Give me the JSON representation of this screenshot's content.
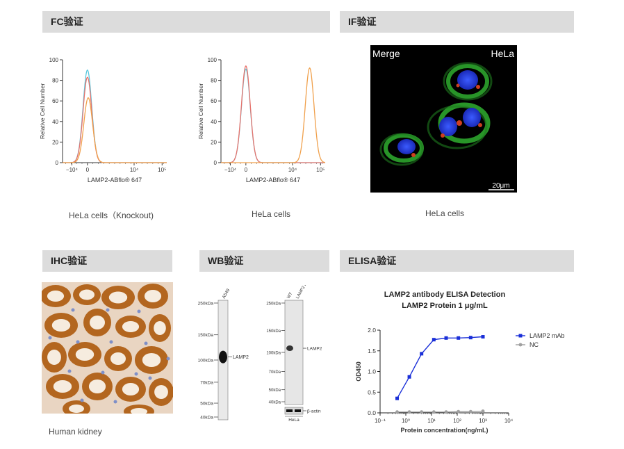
{
  "sections": {
    "fc": "FC验证",
    "if": "IF验证",
    "ihc": "IHC验证",
    "wb": "WB验证",
    "elisa": "ELISA验证"
  },
  "captions": {
    "fc_left": "HeLa cells（Knockout)",
    "fc_right": "HeLa cells",
    "if": "HeLa cells",
    "ihc": "Human kidney"
  },
  "if_image": {
    "label_left": "Merge",
    "label_right": "HeLa",
    "scale_bar": "20μm"
  },
  "chart_data": [
    {
      "type": "line",
      "chart": "flow-histogram-knockout",
      "ylabel": "Relative Cell Number",
      "xlabel": "LAMP2-ABflo® 647",
      "yticks": [
        "0",
        "20",
        "40",
        "60",
        "80",
        "100"
      ],
      "xticks": [
        "−10⁴",
        "0",
        "10⁴",
        "10⁵"
      ],
      "ylim": [
        0,
        100
      ],
      "series": [
        {
          "color": "#5bc8de",
          "peak_x": 0,
          "peak_y": 90
        },
        {
          "color": "#e8736c",
          "peak_x": 0,
          "peak_y": 83
        },
        {
          "color": "#f0a04b",
          "peak_x": 0.05,
          "peak_y": 63
        }
      ]
    },
    {
      "type": "line",
      "chart": "flow-histogram-wt",
      "ylabel": "Relative Cell Number",
      "xlabel": "LAMP2-ABflo® 647",
      "yticks": [
        "0",
        "20",
        "40",
        "60",
        "80",
        "100"
      ],
      "xticks": [
        "−10⁴",
        "0",
        "10⁴",
        "10⁵"
      ],
      "ylim": [
        0,
        100
      ],
      "series": [
        {
          "color": "#5bc8de",
          "peak_x": 0,
          "peak_y": 91
        },
        {
          "color": "#e8736c",
          "peak_x": 0,
          "peak_y": 94
        },
        {
          "color": "#f0a04b",
          "peak_x": 4.1,
          "peak_y": 92
        }
      ]
    },
    {
      "type": "table",
      "chart": "western-blot-1",
      "lanes": [
        "A549"
      ],
      "markers": [
        {
          "label": "250kDa",
          "kda": 250
        },
        {
          "label": "150kDa",
          "kda": 150
        },
        {
          "label": "100kDa",
          "kda": 100
        },
        {
          "label": "70kDa",
          "kda": 70
        },
        {
          "label": "50kDa",
          "kda": 50
        },
        {
          "label": "40kDa",
          "kda": 40
        }
      ],
      "band_label": "LAMP2"
    },
    {
      "type": "table",
      "chart": "western-blot-2",
      "lanes": [
        "WT",
        "LAMP2 KO"
      ],
      "markers": [
        {
          "label": "250kDa",
          "kda": 250
        },
        {
          "label": "150kDa",
          "kda": 150
        },
        {
          "label": "100kDa",
          "kda": 100
        },
        {
          "label": "70kDa",
          "kda": 70
        },
        {
          "label": "50kDa",
          "kda": 50
        },
        {
          "label": "40kDa",
          "kda": 40
        }
      ],
      "band_label": "LAMP2",
      "loading_label": "β-actin",
      "cell_line": "HeLa"
    },
    {
      "type": "line",
      "chart": "elisa",
      "title": "LAMP2 antibody ELISA Detection",
      "subtitle": "LAMP2  Protein 1 μg/mL",
      "xlabel": "Protein concentration(ng/mL)",
      "ylabel": "OD450",
      "x_scale": "log",
      "xticks": [
        "10⁻¹",
        "10⁰",
        "10¹",
        "10²",
        "10³",
        "10⁴"
      ],
      "yticks": [
        "0.0",
        "0.5",
        "1.0",
        "1.5",
        "2.0"
      ],
      "ylim": [
        0,
        2.0
      ],
      "legend_position": "right",
      "series": [
        {
          "name": "LAMP2 mAb",
          "color": "#1a2fd8",
          "x": [
            0.46,
            1.37,
            4.1,
            12.3,
            37,
            111,
            333,
            1000
          ],
          "y": [
            0.35,
            0.87,
            1.43,
            1.77,
            1.81,
            1.81,
            1.82,
            1.84
          ]
        },
        {
          "name": "NC",
          "color": "#a0a0a0",
          "x": [
            0.46,
            1.37,
            4.1,
            12.3,
            37,
            111,
            333,
            1000
          ],
          "y": [
            0.02,
            0.02,
            0.02,
            0.02,
            0.02,
            0.03,
            0.03,
            0.04
          ]
        }
      ]
    }
  ]
}
